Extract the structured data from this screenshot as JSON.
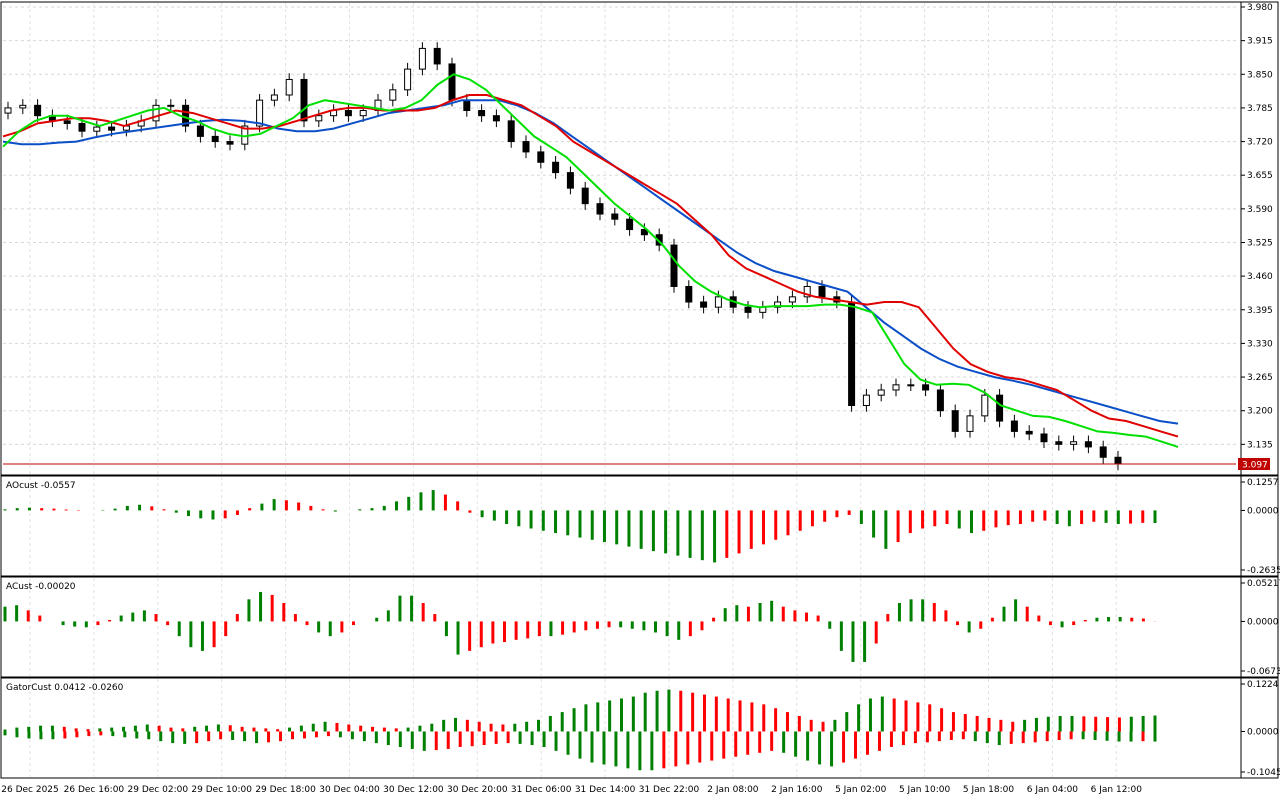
{
  "chart_data": {
    "type": "candlestick",
    "symbol_price_label": "3.097",
    "price_axis": {
      "ylim": [
        3.097,
        3.98
      ],
      "ticks": [
        "3.980",
        "3.915",
        "3.850",
        "3.785",
        "3.720",
        "3.655",
        "3.590",
        "3.525",
        "3.460",
        "3.395",
        "3.330",
        "3.265",
        "3.200",
        "3.135"
      ]
    },
    "x_labels": [
      "26 Dec 2025",
      "26 Dec 16:00",
      "29 Dec 02:00",
      "29 Dec 10:00",
      "29 Dec 18:00",
      "30 Dec 04:00",
      "30 Dec 12:00",
      "30 Dec 20:00",
      "31 Dec 06:00",
      "31 Dec 14:00",
      "31 Dec 22:00",
      "2 Jan 08:00",
      "2 Jan 16:00",
      "5 Jan 02:00",
      "5 Jan 10:00",
      "5 Jan 18:00",
      "6 Jan 04:00",
      "6 Jan 12:00"
    ],
    "close": [
      3.785,
      3.79,
      3.77,
      3.76,
      3.755,
      3.74,
      3.748,
      3.742,
      3.75,
      3.76,
      3.79,
      3.79,
      3.75,
      3.73,
      3.72,
      3.715,
      3.75,
      3.8,
      3.81,
      3.84,
      3.76,
      3.77,
      3.78,
      3.77,
      3.78,
      3.8,
      3.82,
      3.86,
      3.9,
      3.87,
      3.8,
      3.78,
      3.77,
      3.76,
      3.72,
      3.7,
      3.68,
      3.66,
      3.63,
      3.6,
      3.58,
      3.57,
      3.55,
      3.54,
      3.52,
      3.44,
      3.41,
      3.4,
      3.42,
      3.4,
      3.39,
      3.4,
      3.41,
      3.42,
      3.44,
      3.42,
      3.41,
      3.21,
      3.23,
      3.24,
      3.25,
      3.25,
      3.24,
      3.2,
      3.16,
      3.19,
      3.23,
      3.18,
      3.16,
      3.155,
      3.14,
      3.135,
      3.14,
      3.13,
      3.11,
      3.097
    ],
    "ma_fast": {
      "color": "#00e000",
      "values": [
        3.71,
        3.74,
        3.76,
        3.77,
        3.77,
        3.76,
        3.75,
        3.76,
        3.77,
        3.78,
        3.785,
        3.77,
        3.76,
        3.745,
        3.735,
        3.73,
        3.735,
        3.75,
        3.765,
        3.79,
        3.8,
        3.795,
        3.79,
        3.785,
        3.78,
        3.785,
        3.8,
        3.83,
        3.85,
        3.84,
        3.82,
        3.79,
        3.76,
        3.73,
        3.71,
        3.69,
        3.66,
        3.63,
        3.6,
        3.575,
        3.55,
        3.52,
        3.48,
        3.45,
        3.43,
        3.415,
        3.405,
        3.4,
        3.402,
        3.402,
        3.402,
        3.405,
        3.405,
        3.4,
        3.39,
        3.34,
        3.29,
        3.26,
        3.25,
        3.252,
        3.25,
        3.235,
        3.21,
        3.2,
        3.19,
        3.188,
        3.18,
        3.17,
        3.16,
        3.157,
        3.153,
        3.15,
        3.14,
        3.13
      ]
    },
    "ma_mid": {
      "color": "#e00000",
      "values": [
        3.73,
        3.74,
        3.755,
        3.76,
        3.765,
        3.765,
        3.76,
        3.75,
        3.76,
        3.77,
        3.78,
        3.775,
        3.765,
        3.755,
        3.745,
        3.745,
        3.75,
        3.76,
        3.77,
        3.78,
        3.785,
        3.785,
        3.78,
        3.78,
        3.78,
        3.785,
        3.8,
        3.81,
        3.81,
        3.8,
        3.79,
        3.77,
        3.75,
        3.72,
        3.7,
        3.68,
        3.66,
        3.64,
        3.62,
        3.6,
        3.57,
        3.54,
        3.5,
        3.475,
        3.46,
        3.445,
        3.43,
        3.42,
        3.415,
        3.41,
        3.405,
        3.41,
        3.41,
        3.4,
        3.36,
        3.32,
        3.29,
        3.275,
        3.265,
        3.26,
        3.25,
        3.24,
        3.22,
        3.2,
        3.185,
        3.18,
        3.17,
        3.16,
        3.15
      ]
    },
    "ma_slow": {
      "color": "#0b4fc8",
      "values": [
        3.72,
        3.715,
        3.715,
        3.718,
        3.72,
        3.728,
        3.735,
        3.74,
        3.745,
        3.75,
        3.755,
        3.76,
        3.762,
        3.76,
        3.755,
        3.745,
        3.74,
        3.74,
        3.745,
        3.755,
        3.765,
        3.775,
        3.78,
        3.785,
        3.79,
        3.8,
        3.8,
        3.8,
        3.79,
        3.775,
        3.755,
        3.73,
        3.705,
        3.68,
        3.655,
        3.63,
        3.605,
        3.58,
        3.555,
        3.53,
        3.505,
        3.485,
        3.47,
        3.46,
        3.45,
        3.44,
        3.43,
        3.4,
        3.37,
        3.345,
        3.32,
        3.3,
        3.285,
        3.275,
        3.265,
        3.258,
        3.25,
        3.24,
        3.23,
        3.22,
        3.21,
        3.2,
        3.19,
        3.18,
        3.175
      ]
    },
    "current_price": 3.097,
    "indicators": [
      {
        "label": "AOcust -0.0557",
        "ylim": [
          -0.2635,
          0.1257
        ],
        "ticks": [
          "0.1257",
          "0.0000",
          "-0.2635"
        ],
        "colors": {
          "up": "#008000",
          "down": "#ff0000"
        },
        "values": [
          0.005,
          0.01,
          0.012,
          0.01,
          0.008,
          0.004,
          0.002,
          0.0,
          0.002,
          0.008,
          0.02,
          0.025,
          0.018,
          0.005,
          -0.01,
          -0.025,
          -0.035,
          -0.04,
          -0.035,
          -0.02,
          0.01,
          0.03,
          0.05,
          0.045,
          0.035,
          0.02,
          0.005,
          -0.005,
          0.0,
          0.005,
          0.01,
          0.02,
          0.04,
          0.06,
          0.08,
          0.09,
          0.07,
          0.04,
          -0.01,
          -0.03,
          -0.045,
          -0.06,
          -0.07,
          -0.08,
          -0.09,
          -0.1,
          -0.11,
          -0.12,
          -0.13,
          -0.14,
          -0.15,
          -0.16,
          -0.17,
          -0.18,
          -0.19,
          -0.2,
          -0.21,
          -0.22,
          -0.23,
          -0.21,
          -0.19,
          -0.17,
          -0.15,
          -0.13,
          -0.11,
          -0.09,
          -0.07,
          -0.05,
          -0.03,
          -0.02,
          -0.06,
          -0.12,
          -0.17,
          -0.14,
          -0.1,
          -0.08,
          -0.07,
          -0.06,
          -0.08,
          -0.1,
          -0.09,
          -0.075,
          -0.065,
          -0.06,
          -0.05,
          -0.045,
          -0.06,
          -0.07,
          -0.06,
          -0.05,
          -0.055,
          -0.06,
          -0.058,
          -0.055,
          -0.0557
        ]
      },
      {
        "label": "ACust -0.00020",
        "ylim": [
          -0.06732,
          0.05217
        ],
        "ticks": [
          "0.05217",
          "0.0000",
          "-0.06732"
        ],
        "colors": {
          "up": "#008000",
          "down": "#ff0000"
        },
        "values": [
          0.02,
          0.022,
          0.015,
          0.008,
          0.0,
          -0.005,
          -0.007,
          -0.008,
          -0.005,
          0.002,
          0.008,
          0.012,
          0.015,
          0.01,
          -0.005,
          -0.02,
          -0.035,
          -0.04,
          -0.035,
          -0.02,
          0.01,
          0.03,
          0.04,
          0.036,
          0.025,
          0.01,
          -0.005,
          -0.015,
          -0.02,
          -0.015,
          -0.005,
          0.0,
          0.005,
          0.015,
          0.035,
          0.035,
          0.025,
          0.01,
          -0.02,
          -0.045,
          -0.04,
          -0.035,
          -0.03,
          -0.028,
          -0.025,
          -0.023,
          -0.02,
          -0.02,
          -0.018,
          -0.015,
          -0.012,
          -0.01,
          -0.008,
          -0.008,
          -0.01,
          -0.012,
          -0.015,
          -0.02,
          -0.025,
          -0.02,
          -0.012,
          0.005,
          0.018,
          0.022,
          0.02,
          0.025,
          0.028,
          0.02,
          0.015,
          0.012,
          0.008,
          -0.01,
          -0.04,
          -0.055,
          -0.055,
          -0.03,
          0.01,
          0.025,
          0.03,
          0.03,
          0.025,
          0.015,
          -0.005,
          -0.015,
          -0.01,
          0.005,
          0.02,
          0.03,
          0.02,
          0.008,
          -0.005,
          -0.008,
          -0.005,
          0.002,
          0.005,
          0.006,
          0.006,
          0.005,
          0.004,
          -0.0002
        ]
      },
      {
        "label": "GatorCust 0.0412 -0.0260",
        "ylim": [
          -0.1045,
          0.1224
        ],
        "ticks": [
          "0.1224",
          "0.0000",
          "-0.1045"
        ],
        "colors": {
          "up": "#008000",
          "down": "#ff0000"
        },
        "upper_values": [
          0.005,
          0.01,
          0.012,
          0.015,
          0.015,
          0.012,
          0.008,
          0.006,
          0.008,
          0.01,
          0.012,
          0.015,
          0.018,
          0.015,
          0.01,
          0.008,
          0.012,
          0.015,
          0.018,
          0.016,
          0.012,
          0.01,
          0.008,
          0.006,
          0.01,
          0.015,
          0.02,
          0.025,
          0.022,
          0.018,
          0.015,
          0.012,
          0.01,
          0.008,
          0.01,
          0.015,
          0.02,
          0.03,
          0.035,
          0.03,
          0.025,
          0.02,
          0.018,
          0.02,
          0.025,
          0.03,
          0.04,
          0.05,
          0.06,
          0.07,
          0.075,
          0.08,
          0.085,
          0.09,
          0.1,
          0.105,
          0.108,
          0.105,
          0.1,
          0.095,
          0.09,
          0.085,
          0.08,
          0.075,
          0.07,
          0.06,
          0.05,
          0.04,
          0.03,
          0.025,
          0.03,
          0.05,
          0.07,
          0.085,
          0.09,
          0.085,
          0.08,
          0.075,
          0.07,
          0.06,
          0.05,
          0.045,
          0.04,
          0.035,
          0.03,
          0.025,
          0.03,
          0.035,
          0.038,
          0.04,
          0.04,
          0.039,
          0.038,
          0.037,
          0.036,
          0.038,
          0.04,
          0.0412
        ],
        "lower_values": [
          -0.01,
          -0.015,
          -0.018,
          -0.02,
          -0.02,
          -0.018,
          -0.015,
          -0.012,
          -0.01,
          -0.012,
          -0.015,
          -0.018,
          -0.02,
          -0.025,
          -0.03,
          -0.032,
          -0.03,
          -0.025,
          -0.02,
          -0.022,
          -0.025,
          -0.03,
          -0.028,
          -0.025,
          -0.02,
          -0.018,
          -0.015,
          -0.012,
          -0.015,
          -0.02,
          -0.025,
          -0.03,
          -0.035,
          -0.04,
          -0.045,
          -0.05,
          -0.048,
          -0.045,
          -0.04,
          -0.038,
          -0.035,
          -0.032,
          -0.03,
          -0.032,
          -0.035,
          -0.04,
          -0.05,
          -0.06,
          -0.07,
          -0.08,
          -0.085,
          -0.09,
          -0.095,
          -0.1,
          -0.1,
          -0.095,
          -0.09,
          -0.085,
          -0.08,
          -0.075,
          -0.07,
          -0.065,
          -0.06,
          -0.055,
          -0.05,
          -0.055,
          -0.065,
          -0.075,
          -0.085,
          -0.09,
          -0.08,
          -0.07,
          -0.06,
          -0.05,
          -0.04,
          -0.035,
          -0.03,
          -0.028,
          -0.025,
          -0.022,
          -0.02,
          -0.025,
          -0.03,
          -0.035,
          -0.032,
          -0.03,
          -0.028,
          -0.025,
          -0.022,
          -0.02,
          -0.02,
          -0.022,
          -0.024,
          -0.026,
          -0.026,
          -0.025,
          -0.026
        ]
      }
    ]
  }
}
